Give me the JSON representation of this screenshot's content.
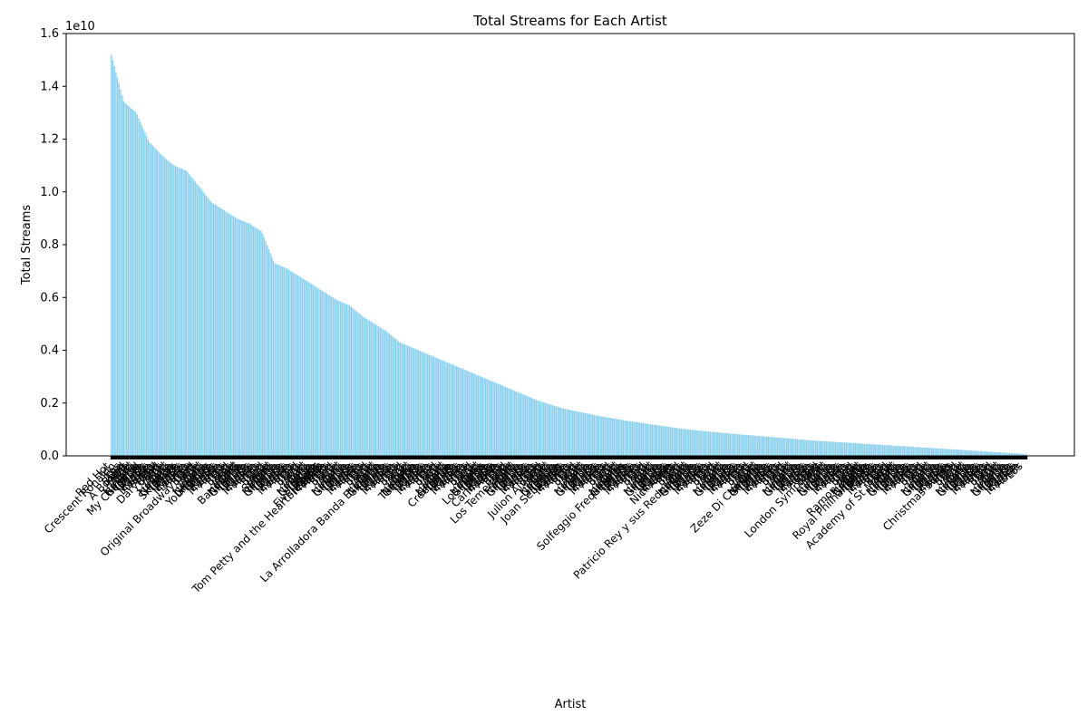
{
  "chart_data": {
    "type": "bar",
    "title": "Total Streams for Each Artist",
    "xlabel": "Artist",
    "ylabel": "Total Streams",
    "offset_text": "1e10",
    "ylim": [
      0,
      16000000000.0
    ],
    "yticks": [
      0,
      2000000000.0,
      4000000000.0,
      6000000000.0,
      8000000000.0,
      10000000000.0,
      12000000000.0,
      14000000000.0,
      16000000000.0
    ],
    "ytick_labels": [
      "0.0",
      "0.2",
      "0.4",
      "0.6",
      "0.8",
      "1.0",
      "1.2",
      "1.4",
      "1.6"
    ],
    "bar_color": "#87ceeb",
    "sorted": "descending",
    "bar_count": 600,
    "visible_artist_labels": [
      "Red Hot",
      "Crescent Ronaldo",
      "A Boogie",
      "My Chemical",
      "Daryl Hall",
      "Ski Mask",
      "Original Broadway Cast",
      "Young Boy",
      "Banda MS",
      "Selena",
      "Five Finger",
      "Tom Petty and the Heartbreakers",
      "La Arrolladora Banda El Limon",
      "The Who",
      "Creedence",
      "Los Tigres",
      "Carin Leon",
      "Los Temerarios",
      "Julion Alvarez",
      "Joan Sebastian",
      "Solfeggio Frequencies",
      "Nick Cave",
      "Patricio Rey y sus Redonditos",
      "Zeze Di Camargo",
      "London Symphony",
      "Ramon Ayala",
      "Royal Philharmonic",
      "Academy of St Martin",
      "Christmas Songs"
    ],
    "values_profile": [
      15200000000.0,
      13400000000.0,
      13000000000.0,
      11900000000.0,
      11400000000.0,
      11000000000.0,
      10800000000.0,
      10200000000.0,
      9600000000.0,
      9300000000.0,
      9000000000.0,
      8800000000.0,
      8500000000.0,
      7300000000.0,
      7100000000.0,
      6800000000.0,
      6500000000.0,
      6200000000.0,
      5900000000.0,
      5700000000.0,
      5300000000.0,
      5000000000.0,
      4700000000.0,
      4300000000.0,
      4100000000.0,
      3900000000.0,
      3700000000.0,
      3500000000.0,
      3300000000.0,
      3100000000.0,
      2900000000.0,
      2700000000.0,
      2500000000.0,
      2300000000.0,
      2100000000.0,
      1950000000.0,
      1800000000.0,
      1700000000.0,
      1600000000.0,
      1500000000.0,
      1420000000.0,
      1340000000.0,
      1270000000.0,
      1200000000.0,
      1130000000.0,
      1060000000.0,
      1000000000.0,
      950000000.0,
      900000000.0,
      860000000.0,
      820000000.0,
      780000000.0,
      740000000.0,
      700000000.0,
      660000000.0,
      620000000.0,
      580000000.0,
      550000000.0,
      520000000.0,
      490000000.0,
      460000000.0,
      430000000.0,
      400000000.0,
      370000000.0,
      340000000.0,
      310000000.0,
      280000000.0,
      250000000.0,
      220000000.0,
      190000000.0,
      160000000.0,
      130000000.0,
      100000000.0,
      70000000.0
    ],
    "grid": false,
    "legend": "none"
  }
}
